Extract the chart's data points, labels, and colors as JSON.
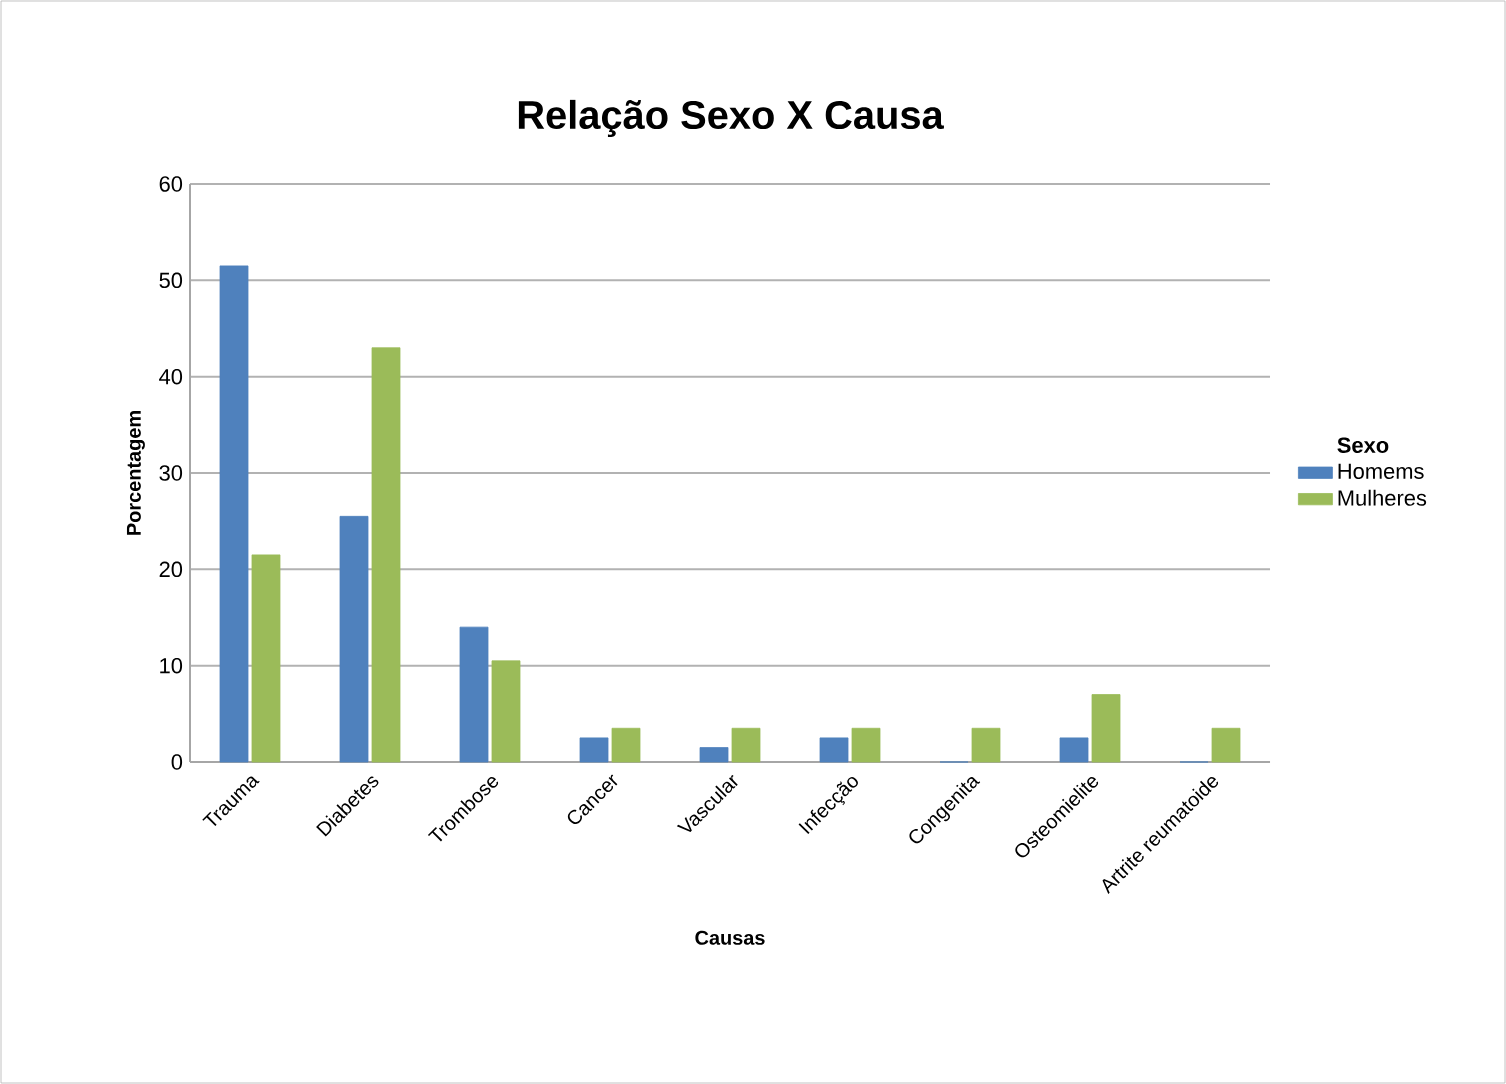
{
  "chart_data": {
    "type": "bar",
    "title": "Relação Sexo X Causa",
    "xlabel": "Causas",
    "ylabel": "Porcentagem",
    "legend_title": "Sexo",
    "categories": [
      "Trauma",
      "Diabetes",
      "Trombose",
      "Cancer",
      "Vascular",
      "Infecção",
      "Congenita",
      "Osteomielite",
      "Artrite reumatoide"
    ],
    "series": [
      {
        "name": "Homems",
        "color": "#4f81bd",
        "values": [
          51.5,
          25.5,
          14,
          2.5,
          1.5,
          2.5,
          0,
          2.5,
          0
        ]
      },
      {
        "name": "Mulheres",
        "color": "#9bbb59",
        "values": [
          21.5,
          43,
          10.5,
          3.5,
          3.5,
          3.5,
          3.5,
          7,
          3.5
        ]
      }
    ],
    "ylim": [
      0,
      60
    ],
    "yticks": [
      0,
      10,
      20,
      30,
      40,
      50,
      60
    ],
    "grid": "y",
    "legend": "right"
  }
}
